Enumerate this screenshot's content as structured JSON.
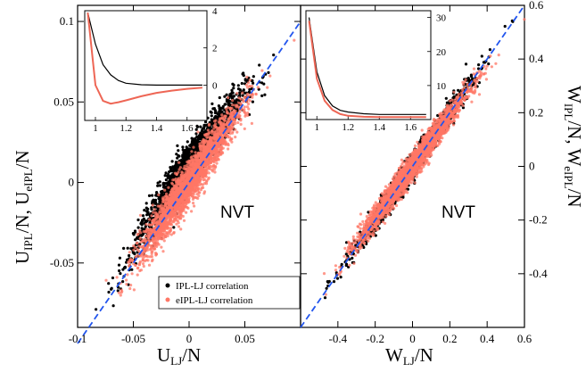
{
  "chart_data": [
    {
      "type": "scatter",
      "panel": "left",
      "xlabel": "U_LJ/N",
      "ylabel": "U_IPL/N, U_eIPL/N",
      "xlim": [
        -0.1,
        0.1
      ],
      "ylim": [
        -0.09,
        0.11
      ],
      "xticks": [
        "-0.1",
        "-0.05",
        "0",
        "0.05"
      ],
      "yticks": [
        "-0.05",
        "0",
        "0.05",
        "0.1"
      ],
      "annotation": "NVT",
      "reference_line": {
        "x": [
          -0.1,
          0.1
        ],
        "y": [
          -0.1,
          0.1
        ],
        "color": "#2255ee",
        "style": "dashed"
      },
      "series": [
        {
          "name": "IPL-LJ correlation",
          "color": "#000000",
          "x": [
            -0.07,
            -0.05,
            -0.03,
            0.0,
            0.03,
            0.05,
            0.07
          ],
          "y": [
            -0.068,
            -0.041,
            -0.018,
            0.012,
            0.038,
            0.056,
            0.07
          ]
        },
        {
          "name": "eIPL-LJ correlation",
          "color": "#ff7766",
          "x": [
            -0.07,
            -0.05,
            -0.03,
            0.0,
            0.03,
            0.05,
            0.07
          ],
          "y": [
            -0.07,
            -0.05,
            -0.03,
            0.0,
            0.03,
            0.05,
            0.07
          ]
        }
      ],
      "inset": {
        "xlim": [
          0.93,
          1.73
        ],
        "ylim": [
          -1.9,
          4
        ],
        "xticks": [
          "1",
          "1.2",
          "1.4",
          "1.6"
        ],
        "yticks": [
          "0",
          "2",
          "4"
        ],
        "series": [
          {
            "color": "#000000",
            "x": [
              0.95,
              1.0,
              1.05,
              1.1,
              1.15,
              1.2,
              1.3,
              1.4,
              1.5,
              1.6,
              1.7
            ],
            "y": [
              3.9,
              2.2,
              1.1,
              0.55,
              0.25,
              0.1,
              0.02,
              0.0,
              0.0,
              0.0,
              0.0
            ]
          },
          {
            "color": "#ee6655",
            "x": [
              0.95,
              1.0,
              1.05,
              1.1,
              1.15,
              1.2,
              1.3,
              1.4,
              1.5,
              1.6,
              1.7
            ],
            "y": [
              3.9,
              0.0,
              -0.85,
              -1.0,
              -0.92,
              -0.82,
              -0.6,
              -0.42,
              -0.3,
              -0.2,
              -0.14
            ]
          }
        ]
      }
    },
    {
      "type": "scatter",
      "panel": "right",
      "xlabel": "W_LJ/N",
      "ylabel": "W_IPL/N, W_eIPL/N",
      "xlim": [
        -0.6,
        0.6
      ],
      "ylim": [
        -0.6,
        0.6
      ],
      "xticks": [
        "-0.4",
        "-0.2",
        "0",
        "0.2",
        "0.4",
        "0.6"
      ],
      "yticks": [
        "-0.4",
        "-0.2",
        "0",
        "0.2",
        "0.4",
        "0.6"
      ],
      "annotation": "NVT",
      "reference_line": {
        "x": [
          -0.6,
          0.6
        ],
        "y": [
          -0.6,
          0.6
        ],
        "color": "#2255ee",
        "style": "dashed"
      },
      "series": [
        {
          "name": "IPL-LJ correlation",
          "color": "#000000",
          "x": [
            -0.4,
            -0.2,
            0.0,
            0.2,
            0.4
          ],
          "y": [
            -0.4,
            -0.2,
            0.0,
            0.2,
            0.4
          ]
        },
        {
          "name": "eIPL-LJ correlation",
          "color": "#ff7766",
          "x": [
            -0.4,
            -0.2,
            0.0,
            0.2,
            0.4
          ],
          "y": [
            -0.38,
            -0.19,
            0.0,
            0.19,
            0.38
          ]
        }
      ],
      "inset": {
        "xlim": [
          0.93,
          1.73
        ],
        "ylim": [
          0,
          32
        ],
        "xticks": [
          "1",
          "1.2",
          "1.4",
          "1.6"
        ],
        "yticks": [
          "10",
          "20",
          "30"
        ],
        "series": [
          {
            "color": "#000000",
            "x": [
              0.95,
              1.0,
              1.05,
              1.1,
              1.15,
              1.2,
              1.3,
              1.4,
              1.5,
              1.6,
              1.7
            ],
            "y": [
              30,
              14,
              7.0,
              4.0,
              2.7,
              2.2,
              1.7,
              1.5,
              1.5,
              1.5,
              1.5
            ]
          },
          {
            "color": "#ee6655",
            "x": [
              0.95,
              1.0,
              1.05,
              1.1,
              1.15,
              1.2,
              1.3,
              1.4,
              1.5,
              1.6,
              1.7
            ],
            "y": [
              29,
              12,
              5.5,
              2.8,
              1.6,
              1.1,
              0.8,
              0.7,
              0.7,
              0.7,
              0.7
            ]
          }
        ]
      }
    }
  ],
  "legend": {
    "entries": [
      {
        "label": "IPL-LJ correlation",
        "color": "#000000"
      },
      {
        "label": "eIPL-LJ correlation",
        "color": "#ff7766"
      }
    ]
  }
}
